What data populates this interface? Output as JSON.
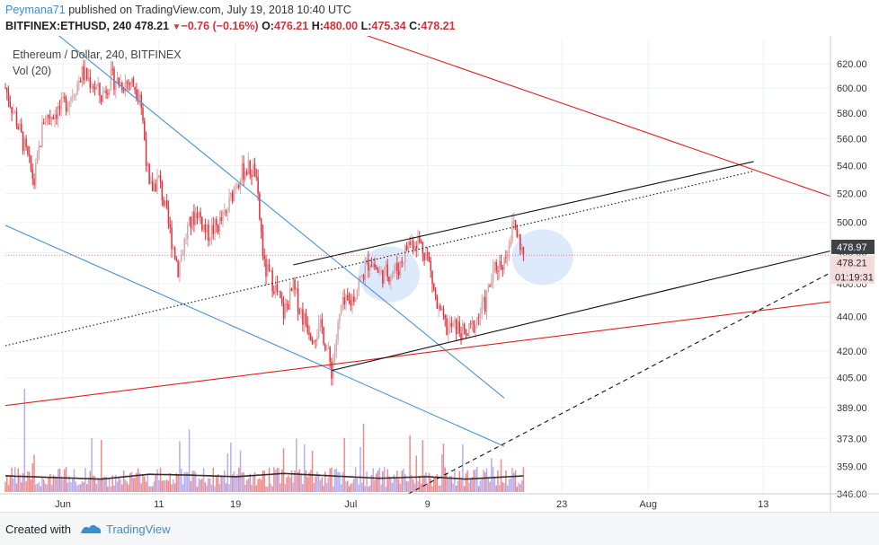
{
  "header": {
    "author": "Peymana71",
    "published_text": "published on TradingView.com, July 19, 2018 10:40 UTC",
    "symbol_interval": "BITFINEX:ETHUSD, 240",
    "last": "478.21",
    "change": "−0.76 (−0.16%)",
    "open_label": "O:",
    "open": "476.21",
    "high_label": "H:",
    "high": "480.00",
    "low_label": "L:",
    "low": "475.34",
    "close_label": "C:",
    "close": "478.21"
  },
  "legend": {
    "title": "Ethereum / Dollar, 240, BITFINEX",
    "volume": "Vol (20)"
  },
  "footer": {
    "created_with": "Created with",
    "brand": "TradingView"
  },
  "colors": {
    "up": "#d5a7a9",
    "down": "#e0303c",
    "vol_up": "#b5aef0",
    "vol_down": "#f08a8a",
    "channel_blue": "#4a90d9",
    "trend_red": "#e02020",
    "channel_black": "#111111",
    "highlight": "#d6e6fb"
  },
  "chart_data": {
    "type": "candlestick",
    "y_scale": "log",
    "ylim": [
      346,
      640
    ],
    "y_ticks": [
      346.0,
      359.0,
      373.0,
      389.0,
      405.0,
      420.0,
      440.0,
      460.0,
      480.0,
      500.0,
      520.0,
      540.0,
      560.0,
      580.0,
      600.0,
      620.0
    ],
    "y_tick_labels": [
      "346.00",
      "359.00",
      "373.00",
      "389.00",
      "405.00",
      "420.00",
      "440.00",
      "460.00",
      "480.00",
      "500.00",
      "520.00",
      "540.00",
      "560.00",
      "580.00",
      "600.00",
      "620.00"
    ],
    "x_tick_labels": [
      "Jun",
      "11",
      "19",
      "Jul",
      "9",
      "23",
      "Aug",
      "13"
    ],
    "x_tick_dates": [
      "2018-06-01",
      "2018-06-11",
      "2018-06-19",
      "2018-07-01",
      "2018-07-09",
      "2018-07-23",
      "2018-08-01",
      "2018-08-13"
    ],
    "x_range": [
      "2018-05-26",
      "2018-08-20"
    ],
    "price_markers": [
      {
        "value": 478.97,
        "label": "478.97",
        "style": "dark"
      },
      {
        "value": 478.21,
        "label": "478.21",
        "style": "light"
      }
    ],
    "countdown_label": "01:19:31",
    "last_price": 478.21,
    "close_path": [
      [
        "2018-05-26",
        600
      ],
      [
        "2018-05-27",
        578
      ],
      [
        "2018-05-28",
        553
      ],
      [
        "2018-05-29",
        528
      ],
      [
        "2018-05-30",
        575
      ],
      [
        "2018-05-31",
        580
      ],
      [
        "2018-06-01",
        585
      ],
      [
        "2018-06-02",
        596
      ],
      [
        "2018-06-03",
        612
      ],
      [
        "2018-06-04",
        605
      ],
      [
        "2018-06-05",
        593
      ],
      [
        "2018-06-06",
        608
      ],
      [
        "2018-06-07",
        604
      ],
      [
        "2018-06-08",
        605
      ],
      [
        "2018-06-09",
        598
      ],
      [
        "2018-06-10",
        522
      ],
      [
        "2018-06-11",
        530
      ],
      [
        "2018-06-12",
        498
      ],
      [
        "2018-06-13",
        470
      ],
      [
        "2018-06-14",
        495
      ],
      [
        "2018-06-15",
        508
      ],
      [
        "2018-06-16",
        492
      ],
      [
        "2018-06-17",
        497
      ],
      [
        "2018-06-18",
        505
      ],
      [
        "2018-06-19",
        528
      ],
      [
        "2018-06-20",
        538
      ],
      [
        "2018-06-21",
        536
      ],
      [
        "2018-06-22",
        470
      ],
      [
        "2018-06-23",
        460
      ],
      [
        "2018-06-24",
        442
      ],
      [
        "2018-06-25",
        457
      ],
      [
        "2018-06-26",
        440
      ],
      [
        "2018-06-27",
        430
      ],
      [
        "2018-06-28",
        433
      ],
      [
        "2018-06-29",
        409
      ],
      [
        "2018-06-30",
        445
      ],
      [
        "2018-07-01",
        449
      ],
      [
        "2018-07-02",
        462
      ],
      [
        "2018-07-03",
        476
      ],
      [
        "2018-07-04",
        466
      ],
      [
        "2018-07-05",
        467
      ],
      [
        "2018-07-06",
        470
      ],
      [
        "2018-07-07",
        486
      ],
      [
        "2018-07-08",
        488
      ],
      [
        "2018-07-09",
        478
      ],
      [
        "2018-07-10",
        445
      ],
      [
        "2018-07-11",
        433
      ],
      [
        "2018-07-12",
        434
      ],
      [
        "2018-07-13",
        428
      ],
      [
        "2018-07-14",
        437
      ],
      [
        "2018-07-15",
        448
      ],
      [
        "2018-07-16",
        470
      ],
      [
        "2018-07-17",
        475
      ],
      [
        "2018-07-18",
        500
      ],
      [
        "2018-07-19",
        478.21
      ]
    ],
    "volume_path": [
      [
        "2018-05-26",
        2.0
      ],
      [
        "2018-05-31",
        1.8
      ],
      [
        "2018-06-05",
        1.6
      ],
      [
        "2018-06-10",
        2.2
      ],
      [
        "2018-06-14",
        2.1
      ],
      [
        "2018-06-19",
        1.9
      ],
      [
        "2018-06-24",
        2.3
      ],
      [
        "2018-06-29",
        2.0
      ],
      [
        "2018-07-04",
        1.7
      ],
      [
        "2018-07-09",
        1.9
      ],
      [
        "2018-07-13",
        1.6
      ],
      [
        "2018-07-19",
        2.0
      ]
    ],
    "drawings": [
      {
        "name": "blue-upper-trendline",
        "color": "blue",
        "dash": "solid",
        "points": [
          [
            "2018-05-30",
            655
          ],
          [
            "2018-07-17",
            394
          ]
        ]
      },
      {
        "name": "blue-lower-trendline",
        "color": "blue",
        "dash": "solid",
        "points": [
          [
            "2018-05-26",
            498
          ],
          [
            "2018-07-17",
            369
          ]
        ]
      },
      {
        "name": "red-resistance-line",
        "color": "red",
        "dash": "solid",
        "points": [
          [
            "2018-06-29",
            655
          ],
          [
            "2018-08-20",
            518
          ]
        ]
      },
      {
        "name": "red-support-line",
        "color": "red",
        "dash": "solid",
        "points": [
          [
            "2018-05-26",
            390
          ],
          [
            "2018-08-20",
            449
          ]
        ]
      },
      {
        "name": "channel-upper-line",
        "color": "black",
        "dash": "solid",
        "points": [
          [
            "2018-06-25",
            472
          ],
          [
            "2018-08-12",
            543
          ]
        ]
      },
      {
        "name": "channel-lower-line",
        "color": "black",
        "dash": "solid",
        "points": [
          [
            "2018-06-29",
            409
          ],
          [
            "2018-08-20",
            481
          ]
        ]
      },
      {
        "name": "channel-mid-line",
        "color": "black",
        "dash": "dotted",
        "points": [
          [
            "2018-05-26",
            423
          ],
          [
            "2018-08-12",
            536
          ]
        ]
      },
      {
        "name": "projection-line",
        "color": "black",
        "dash": "dashed",
        "points": [
          [
            "2018-07-07",
            346
          ],
          [
            "2018-08-20",
            467
          ]
        ]
      }
    ],
    "highlights": [
      {
        "name": "highlight-circle-1",
        "center": [
          "2018-07-05",
          466
        ]
      },
      {
        "name": "highlight-circle-2",
        "center": [
          "2018-07-21",
          477
        ]
      }
    ]
  }
}
